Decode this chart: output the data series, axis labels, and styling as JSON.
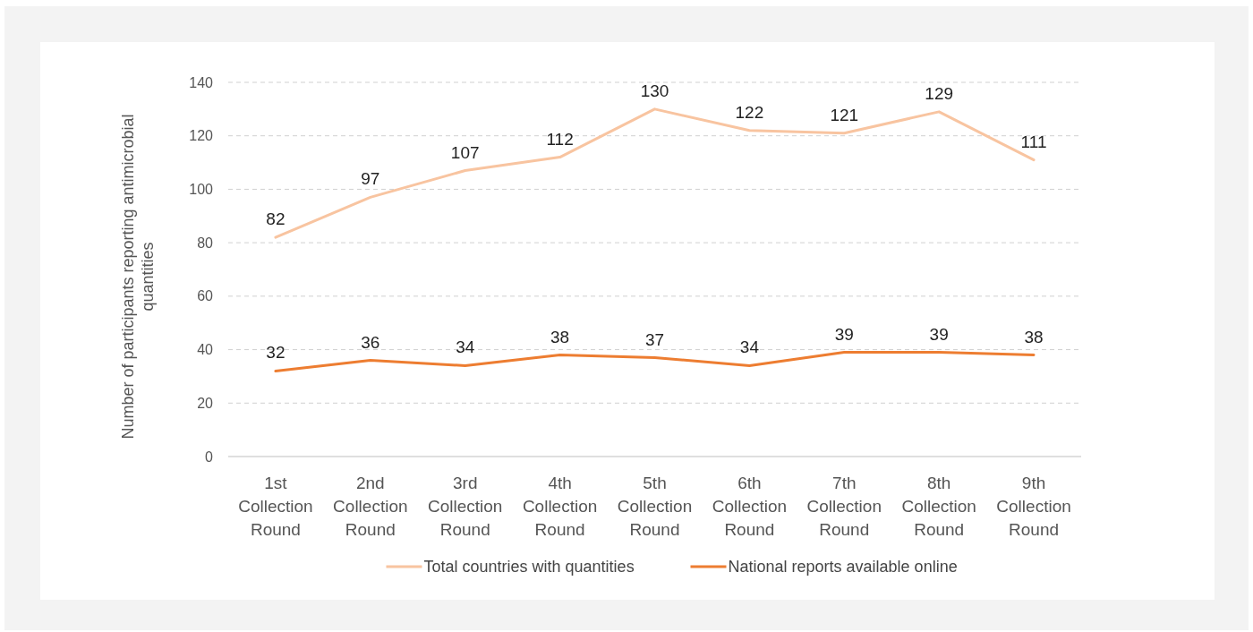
{
  "chart_data": {
    "type": "line",
    "ylabel": "Number of participants reporting antimicrobial quantities",
    "categories": [
      "1st Collection Round",
      "2nd Collection Round",
      "3rd Collection Round",
      "4th Collection Round",
      "5th Collection Round",
      "6th Collection Round",
      "7th Collection Round",
      "8th Collection Round",
      "9th Collection Round"
    ],
    "series": [
      {
        "name": "Total countries with quantities",
        "color": "#f8c4a0",
        "values": [
          82,
          97,
          107,
          112,
          130,
          122,
          121,
          129,
          111
        ]
      },
      {
        "name": "National reports available online",
        "color": "#ed7d31",
        "values": [
          32,
          36,
          34,
          38,
          37,
          34,
          39,
          39,
          38
        ]
      }
    ],
    "ylim": [
      0,
      140
    ],
    "yticks": [
      0,
      20,
      40,
      60,
      80,
      100,
      120,
      140
    ],
    "grid": "y",
    "legend": "bottom",
    "data_labels": true,
    "marker": "none",
    "line_style": "solid"
  }
}
